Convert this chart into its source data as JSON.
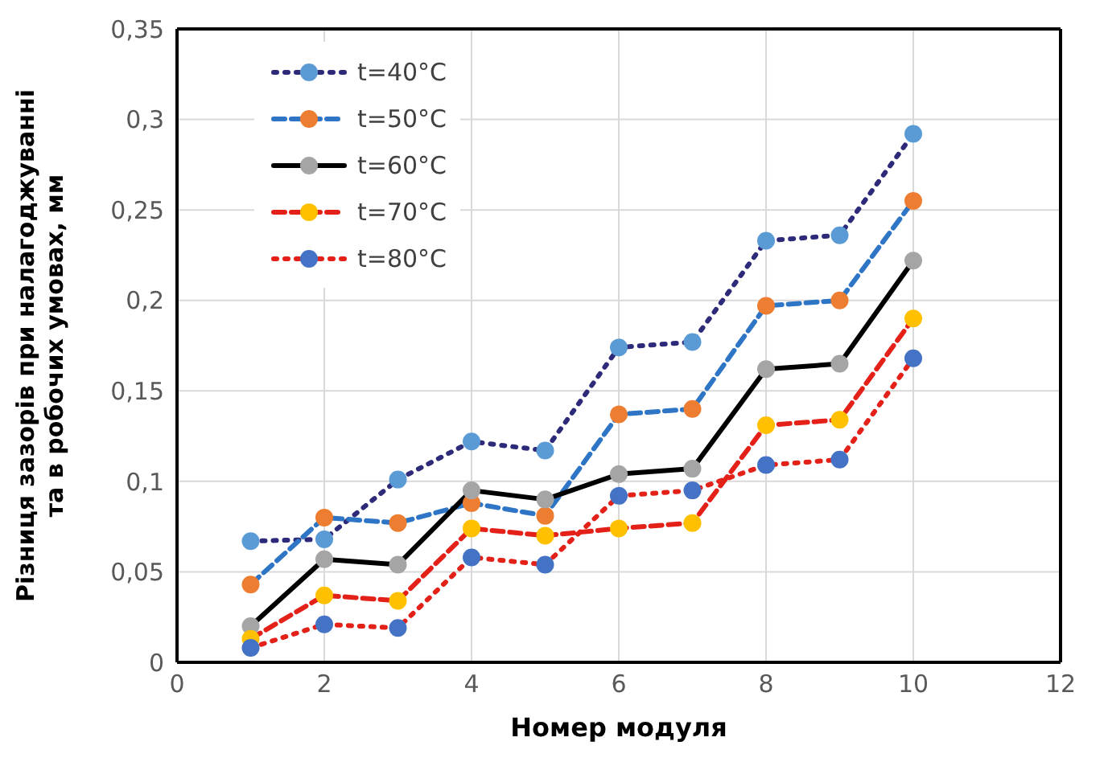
{
  "chart_data": {
    "type": "line",
    "xlabel": "Номер модуля",
    "ylabel": "Різниця зазорів при налагоджуванні та в робочих умовах, мм",
    "x": [
      1,
      2,
      3,
      4,
      5,
      6,
      7,
      8,
      9,
      10
    ],
    "series": [
      {
        "name": "t=40°C",
        "color": "#2e2a7a",
        "line_style": "dotted",
        "colors": [
          "#5b9bd5",
          "#5b9bd5",
          "#5b9bd5",
          "#5b9bd5",
          "#5b9bd5",
          "#5b9bd5",
          "#5b9bd5",
          "#5b9bd5",
          "#5b9bd5",
          "#5b9bd5"
        ],
        "values": [
          0.067,
          0.068,
          0.101,
          0.122,
          0.117,
          0.174,
          0.177,
          0.233,
          0.236,
          0.292
        ]
      },
      {
        "name": "t=50°C",
        "color": "#2e75c6",
        "line_style": "dashed",
        "colors": [
          "#ed7d31",
          "#ed7d31",
          "#ed7d31",
          "#ed7d31",
          "#ed7d31",
          "#ed7d31",
          "#ed7d31",
          "#ed7d31",
          "#ed7d31",
          "#ed7d31"
        ],
        "values": [
          0.043,
          0.08,
          0.077,
          0.088,
          0.081,
          0.137,
          0.14,
          0.197,
          0.2,
          0.255
        ]
      },
      {
        "name": "t=60°C",
        "color": "#000000",
        "line_style": "solid",
        "colors": [
          "#a5a5a5",
          "#a5a5a5",
          "#a5a5a5",
          "#a5a5a5",
          "#a5a5a5",
          "#a5a5a5",
          "#a5a5a5",
          "#a5a5a5",
          "#a5a5a5",
          "#a5a5a5"
        ],
        "values": [
          0.02,
          0.057,
          0.054,
          0.095,
          0.09,
          0.104,
          0.107,
          0.162,
          0.165,
          0.222
        ]
      },
      {
        "name": "t=70°C",
        "color": "#e32119",
        "line_style": "dashed",
        "colors": [
          "#ffc000",
          "#ffc000",
          "#ffc000",
          "#ffc000",
          "#ffc000",
          "#ffc000",
          "#ffc000",
          "#ffc000",
          "#ffc000",
          "#ffc000"
        ],
        "values": [
          0.013,
          0.037,
          0.034,
          0.074,
          0.07,
          0.074,
          0.077,
          0.131,
          0.134,
          0.19
        ]
      },
      {
        "name": "t=80°C",
        "color": "#e32119",
        "line_style": "dotted",
        "colors": [
          "#4472c4",
          "#4472c4",
          "#4472c4",
          "#4472c4",
          "#4472c4",
          "#4472c4",
          "#4472c4",
          "#4472c4",
          "#4472c4",
          "#4472c4"
        ],
        "values": [
          0.008,
          0.021,
          0.019,
          0.058,
          0.054,
          0.092,
          0.095,
          0.109,
          0.112,
          0.168
        ]
      }
    ],
    "xlim": [
      0,
      12
    ],
    "xticks": [
      0,
      2,
      4,
      6,
      8,
      10,
      12
    ],
    "ylim": [
      0,
      0.35
    ],
    "yticks": [
      0,
      {
        "value": 0.05,
        "label": "0,05"
      },
      {
        "value": 0.1,
        "label": "0,1"
      },
      {
        "value": 0.15,
        "label": "0,15"
      },
      {
        "value": 0.2,
        "label": "0,2"
      },
      {
        "value": 0.25,
        "label": "0,25"
      },
      {
        "value": 0.3,
        "label": "0,3"
      },
      {
        "value": 0.35,
        "label": "0,35"
      }
    ],
    "grid": true,
    "legend": "top left",
    "marker": "circle"
  }
}
